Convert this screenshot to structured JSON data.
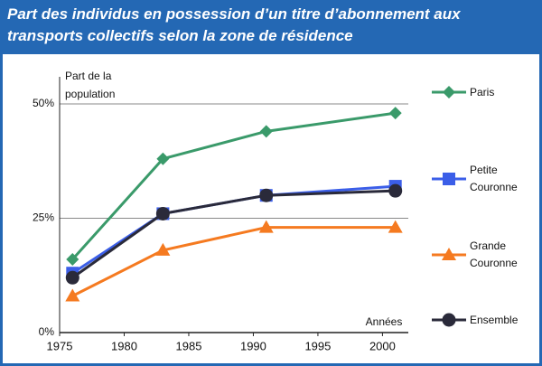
{
  "chart_data": {
    "type": "line",
    "title": "Part des individus en possession d’un titre d’abonnement aux transports collectifs selon la zone de résidence",
    "y_label": "Part de la population",
    "x_label": "Années",
    "x": [
      1976,
      1983,
      1991,
      2001
    ],
    "xlim": [
      1975,
      2002
    ],
    "xticks": [
      1975,
      1980,
      1985,
      1990,
      1995,
      2000
    ],
    "ylim": [
      0,
      50
    ],
    "yticks": [
      {
        "value": 0,
        "label": "0%"
      },
      {
        "value": 25,
        "label": "25%"
      },
      {
        "value": 50,
        "label": "50%"
      }
    ],
    "grid": true,
    "legend": "right",
    "series": [
      {
        "name": "Paris",
        "color": "#3a9a6a",
        "marker": "diamond",
        "values": [
          16,
          38,
          44,
          48
        ]
      },
      {
        "name": "Petite Couronne",
        "color": "#3b5ee8",
        "marker": "square",
        "values": [
          13,
          26,
          30,
          32
        ]
      },
      {
        "name": "Grande Couronne",
        "color": "#f57a20",
        "marker": "triangle",
        "values": [
          8,
          18,
          23,
          23
        ]
      },
      {
        "name": "Ensemble",
        "color": "#2a2a3a",
        "marker": "circle",
        "values": [
          12,
          26,
          30,
          31
        ]
      }
    ]
  }
}
